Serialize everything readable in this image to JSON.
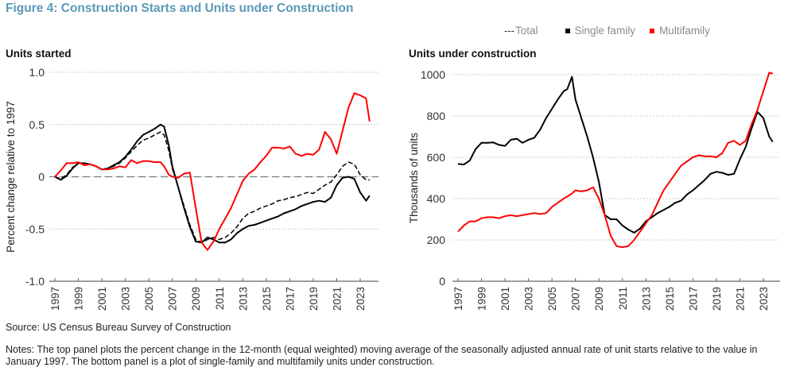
{
  "figure": {
    "title": "Figure 4: Construction Starts and Units under Construction",
    "source": "Source: US Census Bureau Survey of Construction",
    "notes": "Notes: The top panel plots the percent change in the 12-month (equal weighted) moving average of the seasonally adjusted annual rate of unit starts relative to the value in January 1997. The bottom panel is a plot of single-family and multifamily units under construction."
  },
  "legend": [
    {
      "label": "Total",
      "swatch": "dashed",
      "color": "#000000"
    },
    {
      "label": "Single family",
      "swatch": "square",
      "color": "#000000"
    },
    {
      "label": "Multifamily",
      "swatch": "square",
      "color": "#ff0000"
    }
  ],
  "colors": {
    "single_family": "#000000",
    "multifamily": "#ff0000",
    "total": "#000000",
    "title": "#5b99b8",
    "legend_text": "#8c8c8c"
  },
  "chart_data": [
    {
      "type": "line",
      "title": "Units started",
      "xlabel": "",
      "ylabel": "Percent change relative to 1997",
      "xlim": [
        1997,
        2024
      ],
      "ylim": [
        -1.0,
        1.0
      ],
      "yticks": [
        1.0,
        0.5,
        0,
        -0.5,
        -1.0
      ],
      "ytick_labels": [
        "1.0",
        "0.5",
        "0",
        "-0.5",
        "-1.0"
      ],
      "xticks": [
        1997,
        1999,
        2001,
        2003,
        2005,
        2007,
        2009,
        2011,
        2013,
        2015,
        2017,
        2019,
        2021,
        2023
      ],
      "xtick_labels": [
        "1997",
        "1999",
        "2001",
        "2003",
        "2005",
        "2007",
        "2009",
        "2011",
        "2013",
        "2015",
        "2017",
        "2019",
        "2021",
        "2023"
      ],
      "grid": "horizontal-dotted",
      "reference_line": {
        "y": 0,
        "style": "dashed"
      },
      "x": [
        1997.0,
        1997.5,
        1998.0,
        1998.5,
        1999.0,
        1999.5,
        2000.0,
        2000.5,
        2001.0,
        2001.5,
        2002.0,
        2002.5,
        2003.0,
        2003.5,
        2004.0,
        2004.5,
        2005.0,
        2005.5,
        2006.0,
        2006.3,
        2006.7,
        2007.0,
        2007.5,
        2008.0,
        2008.5,
        2009.0,
        2009.5,
        2010.0,
        2010.5,
        2011.0,
        2011.5,
        2012.0,
        2012.5,
        2013.0,
        2013.5,
        2014.0,
        2014.5,
        2015.0,
        2015.5,
        2016.0,
        2016.5,
        2017.0,
        2017.5,
        2018.0,
        2018.5,
        2019.0,
        2019.5,
        2020.0,
        2020.5,
        2021.0,
        2021.5,
        2022.0,
        2022.5,
        2023.0,
        2023.5,
        2023.8
      ],
      "series": [
        {
          "name": "Single family",
          "color": "#000000",
          "style": "solid",
          "values": [
            0.0,
            -0.03,
            0.01,
            0.08,
            0.13,
            0.13,
            0.12,
            0.1,
            0.07,
            0.08,
            0.11,
            0.14,
            0.19,
            0.26,
            0.34,
            0.4,
            0.43,
            0.46,
            0.5,
            0.48,
            0.3,
            0.1,
            -0.1,
            -0.3,
            -0.48,
            -0.62,
            -0.63,
            -0.58,
            -0.6,
            -0.63,
            -0.63,
            -0.6,
            -0.54,
            -0.5,
            -0.47,
            -0.46,
            -0.44,
            -0.42,
            -0.4,
            -0.38,
            -0.35,
            -0.33,
            -0.31,
            -0.28,
            -0.26,
            -0.24,
            -0.23,
            -0.24,
            -0.2,
            -0.08,
            -0.01,
            0.0,
            -0.02,
            -0.15,
            -0.23,
            -0.18
          ]
        },
        {
          "name": "Total",
          "color": "#000000",
          "style": "dashed",
          "values": [
            0.0,
            -0.02,
            0.02,
            0.09,
            0.13,
            0.13,
            0.12,
            0.1,
            0.07,
            0.08,
            0.1,
            0.13,
            0.18,
            0.24,
            0.3,
            0.35,
            0.37,
            0.4,
            0.43,
            0.4,
            0.25,
            0.08,
            -0.1,
            -0.28,
            -0.46,
            -0.6,
            -0.63,
            -0.6,
            -0.58,
            -0.6,
            -0.58,
            -0.54,
            -0.48,
            -0.4,
            -0.35,
            -0.33,
            -0.3,
            -0.28,
            -0.26,
            -0.23,
            -0.22,
            -0.2,
            -0.19,
            -0.17,
            -0.15,
            -0.16,
            -0.12,
            -0.08,
            -0.05,
            0.02,
            0.1,
            0.14,
            0.12,
            0.02,
            -0.03,
            -0.03
          ]
        },
        {
          "name": "Multifamily",
          "color": "#ff0000",
          "style": "solid",
          "values": [
            0.0,
            0.06,
            0.13,
            0.13,
            0.14,
            0.11,
            0.12,
            0.1,
            0.07,
            0.07,
            0.08,
            0.1,
            0.09,
            0.16,
            0.13,
            0.15,
            0.15,
            0.14,
            0.14,
            0.1,
            0.02,
            0.0,
            -0.01,
            0.03,
            0.04,
            -0.3,
            -0.63,
            -0.7,
            -0.62,
            -0.5,
            -0.4,
            -0.3,
            -0.17,
            -0.04,
            0.03,
            0.07,
            0.14,
            0.2,
            0.28,
            0.28,
            0.27,
            0.29,
            0.22,
            0.2,
            0.22,
            0.21,
            0.26,
            0.43,
            0.36,
            0.22,
            0.44,
            0.66,
            0.8,
            0.78,
            0.75,
            0.53
          ]
        }
      ]
    },
    {
      "type": "line",
      "title": "Units under construction",
      "xlabel": "",
      "ylabel": "Thousands of units",
      "xlim": [
        1997,
        2024
      ],
      "ylim": [
        0,
        1000
      ],
      "yticks": [
        1000,
        800,
        600,
        400,
        200,
        0
      ],
      "ytick_labels": [
        "1000",
        "800",
        "600",
        "400",
        "200",
        "0"
      ],
      "xticks": [
        1997,
        1999,
        2001,
        2003,
        2005,
        2007,
        2009,
        2011,
        2013,
        2015,
        2017,
        2019,
        2021,
        2023
      ],
      "xtick_labels": [
        "1997",
        "1999",
        "2001",
        "2003",
        "2005",
        "2007",
        "2009",
        "2011",
        "2013",
        "2015",
        "2017",
        "2019",
        "2021",
        "2023"
      ],
      "grid": "horizontal-dotted",
      "x": [
        1997.0,
        1997.5,
        1998.0,
        1998.5,
        1999.0,
        1999.5,
        2000.0,
        2000.5,
        2001.0,
        2001.5,
        2002.0,
        2002.5,
        2003.0,
        2003.5,
        2004.0,
        2004.5,
        2005.0,
        2005.5,
        2006.0,
        2006.3,
        2006.7,
        2007.0,
        2007.5,
        2008.0,
        2008.5,
        2009.0,
        2009.5,
        2010.0,
        2010.5,
        2011.0,
        2011.5,
        2012.0,
        2012.5,
        2013.0,
        2013.5,
        2014.0,
        2014.5,
        2015.0,
        2015.5,
        2016.0,
        2016.5,
        2017.0,
        2017.5,
        2018.0,
        2018.5,
        2019.0,
        2019.5,
        2020.0,
        2020.5,
        2021.0,
        2021.5,
        2022.0,
        2022.5,
        2023.0,
        2023.5,
        2023.8
      ],
      "series": [
        {
          "name": "Single family",
          "color": "#000000",
          "style": "solid",
          "values": [
            568,
            565,
            585,
            640,
            670,
            670,
            672,
            660,
            655,
            685,
            690,
            670,
            685,
            695,
            735,
            790,
            835,
            880,
            920,
            930,
            990,
            880,
            790,
            700,
            600,
            480,
            320,
            300,
            300,
            270,
            250,
            235,
            255,
            290,
            310,
            330,
            345,
            360,
            380,
            390,
            420,
            440,
            465,
            490,
            520,
            530,
            525,
            515,
            520,
            590,
            650,
            740,
            820,
            790,
            700,
            675
          ]
        },
        {
          "name": "Multifamily",
          "color": "#ff0000",
          "style": "solid",
          "values": [
            240,
            270,
            290,
            290,
            305,
            310,
            310,
            305,
            315,
            320,
            315,
            320,
            325,
            330,
            325,
            330,
            360,
            380,
            400,
            410,
            425,
            440,
            435,
            440,
            455,
            400,
            320,
            220,
            170,
            165,
            170,
            200,
            240,
            280,
            320,
            380,
            440,
            480,
            520,
            560,
            580,
            600,
            610,
            605,
            605,
            600,
            620,
            670,
            680,
            660,
            680,
            760,
            830,
            920,
            1010,
            1005
          ]
        }
      ]
    }
  ]
}
